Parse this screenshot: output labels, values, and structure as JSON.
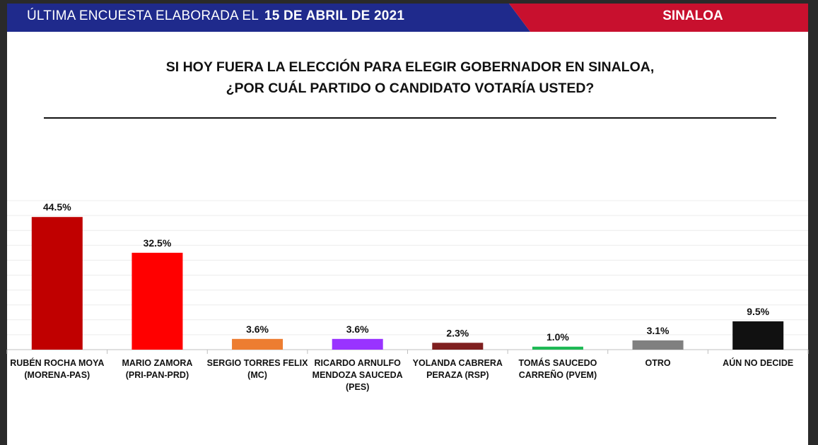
{
  "header": {
    "label": "ÚLTIMA ENCUESTA ELABORADA EL",
    "date": "15 DE ABRIL DE 2021",
    "region": "SINALOA",
    "colors": {
      "blue": "#1f2a8c",
      "red": "#c8102e"
    }
  },
  "question": {
    "line1": "SI HOY FUERA LA ELECCIÓN PARA ELEGIR GOBERNADOR EN SINALOA,",
    "line2": "¿POR CUÁL PARTIDO O CANDIDATO VOTARÍA USTED?"
  },
  "chart_data": {
    "type": "bar",
    "title": "",
    "xlabel": "",
    "ylabel": "",
    "ylim": [
      0,
      50
    ],
    "grid": true,
    "categories": [
      [
        "RUBÉN ROCHA MOYA",
        "(MORENA-PAS)"
      ],
      [
        "MARIO ZAMORA",
        "(PRI-PAN-PRD)"
      ],
      [
        "SERGIO TORRES FELIX",
        "(MC)"
      ],
      [
        "RICARDO ARNULFO",
        "MENDOZA SAUCEDA",
        "(PES)"
      ],
      [
        "YOLANDA CABRERA",
        "PERAZA (RSP)"
      ],
      [
        "TOMÁS SAUCEDO",
        "CARREÑO (PVEM)"
      ],
      [
        "OTRO"
      ],
      [
        "AÚN NO DECIDE"
      ]
    ],
    "values": [
      44.5,
      32.5,
      3.6,
      3.6,
      2.3,
      1.0,
      3.1,
      9.5
    ],
    "data_labels": [
      "44.5%",
      "32.5%",
      "3.6%",
      "3.6%",
      "2.3%",
      "1.0%",
      "3.1%",
      "9.5%"
    ],
    "colors": [
      "#c00000",
      "#ff0000",
      "#ed7d31",
      "#9933ff",
      "#7f1f1f",
      "#1db954",
      "#808080",
      "#111111"
    ]
  }
}
